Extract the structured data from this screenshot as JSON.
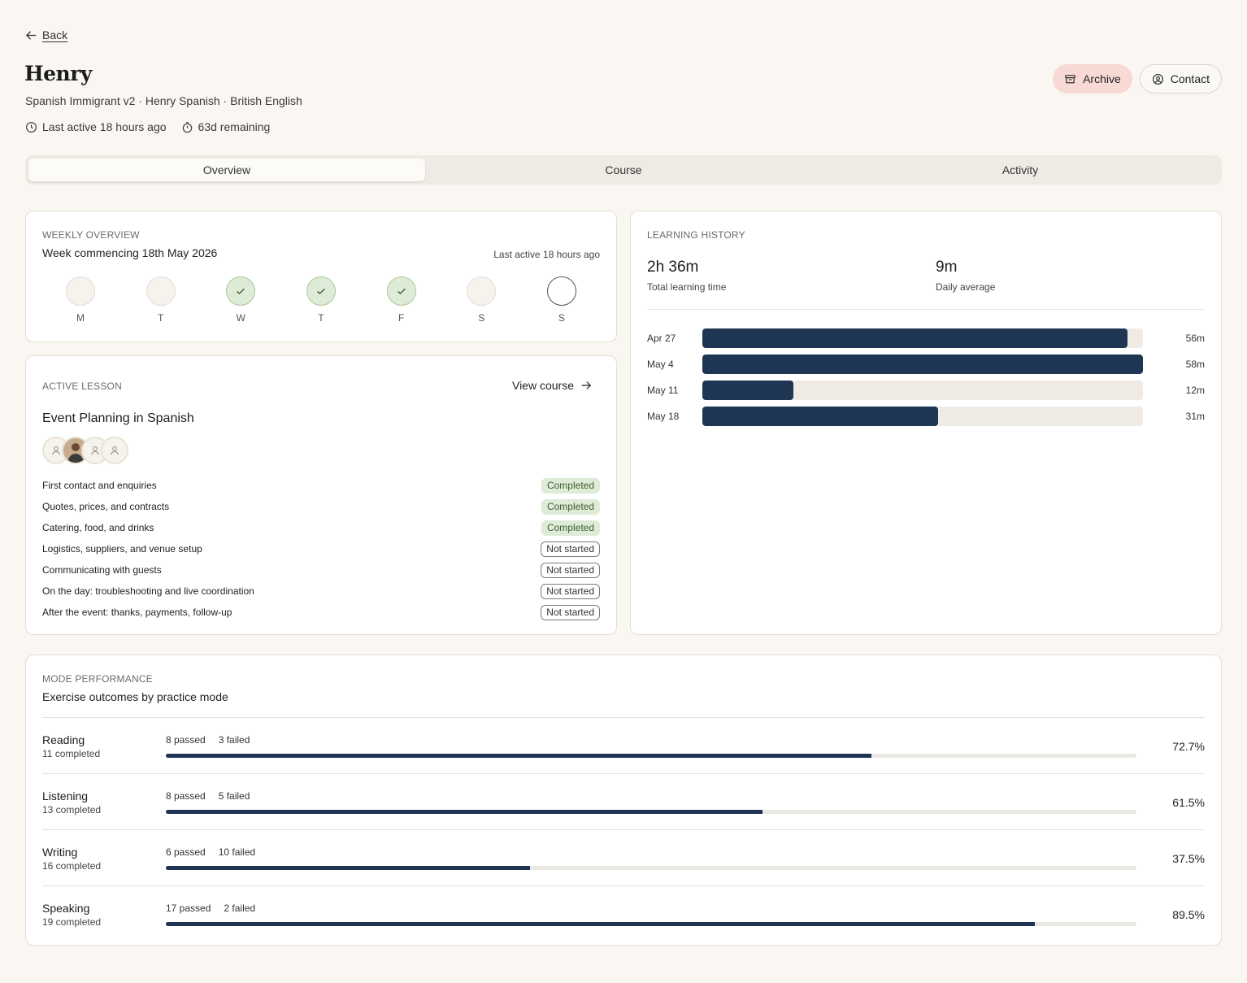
{
  "nav": {
    "back_label": "Back"
  },
  "header": {
    "name": "Henry",
    "subtitle": "Spanish Immigrant v2 · Henry Spanish · British English",
    "last_active": "Last active 18 hours ago",
    "remaining": "63d remaining",
    "archive_label": "Archive",
    "contact_label": "Contact"
  },
  "tabs": [
    {
      "label": "Overview",
      "active": true
    },
    {
      "label": "Course",
      "active": false
    },
    {
      "label": "Activity",
      "active": false
    }
  ],
  "weekly": {
    "eyebrow": "WEEKLY OVERVIEW",
    "week": "Week commencing 18th May 2026",
    "last_active": "Last active 18 hours ago",
    "days": [
      {
        "label": "M",
        "state": "empty"
      },
      {
        "label": "T",
        "state": "empty"
      },
      {
        "label": "W",
        "state": "done"
      },
      {
        "label": "T",
        "state": "done"
      },
      {
        "label": "F",
        "state": "done"
      },
      {
        "label": "S",
        "state": "empty"
      },
      {
        "label": "S",
        "state": "today"
      }
    ]
  },
  "lesson": {
    "eyebrow": "ACTIVE LESSON",
    "view_course": "View course",
    "title": "Event Planning in Spanish",
    "items": [
      {
        "name": "First contact and enquiries",
        "status": "Completed"
      },
      {
        "name": "Quotes, prices, and contracts",
        "status": "Completed"
      },
      {
        "name": "Catering, food, and drinks",
        "status": "Completed"
      },
      {
        "name": "Logistics, suppliers, and venue setup",
        "status": "Not started"
      },
      {
        "name": "Communicating with guests",
        "status": "Not started"
      },
      {
        "name": "On the day: troubleshooting and live coordination",
        "status": "Not started"
      },
      {
        "name": "After the event: thanks, payments, follow-up",
        "status": "Not started"
      }
    ]
  },
  "history": {
    "eyebrow": "LEARNING HISTORY",
    "total_value": "2h 36m",
    "total_label": "Total learning time",
    "avg_value": "9m",
    "avg_label": "Daily average",
    "max_minutes": 58,
    "weeks": [
      {
        "date": "Apr 27",
        "minutes": 56,
        "label": "56m"
      },
      {
        "date": "May 4",
        "minutes": 58,
        "label": "58m"
      },
      {
        "date": "May 11",
        "minutes": 12,
        "label": "12m"
      },
      {
        "date": "May 18",
        "minutes": 31,
        "label": "31m"
      }
    ]
  },
  "modes": {
    "eyebrow": "MODE PERFORMANCE",
    "subtitle": "Exercise outcomes by practice mode",
    "rows": [
      {
        "name": "Reading",
        "completed": "11 completed",
        "passed": "8 passed",
        "failed": "3 failed",
        "pct_label": "72.7%",
        "pct": 72.7
      },
      {
        "name": "Listening",
        "completed": "13 completed",
        "passed": "8 passed",
        "failed": "5 failed",
        "pct_label": "61.5%",
        "pct": 61.5
      },
      {
        "name": "Writing",
        "completed": "16 completed",
        "passed": "6 passed",
        "failed": "10 failed",
        "pct_label": "37.5%",
        "pct": 37.5
      },
      {
        "name": "Speaking",
        "completed": "19 completed",
        "passed": "17 passed",
        "failed": "2 failed",
        "pct_label": "89.5%",
        "pct": 89.5
      }
    ]
  },
  "colors": {
    "accent": "#1e3553",
    "done": "#deebd6",
    "archive_bg": "#f8d9d4",
    "background": "#faf7f2"
  }
}
